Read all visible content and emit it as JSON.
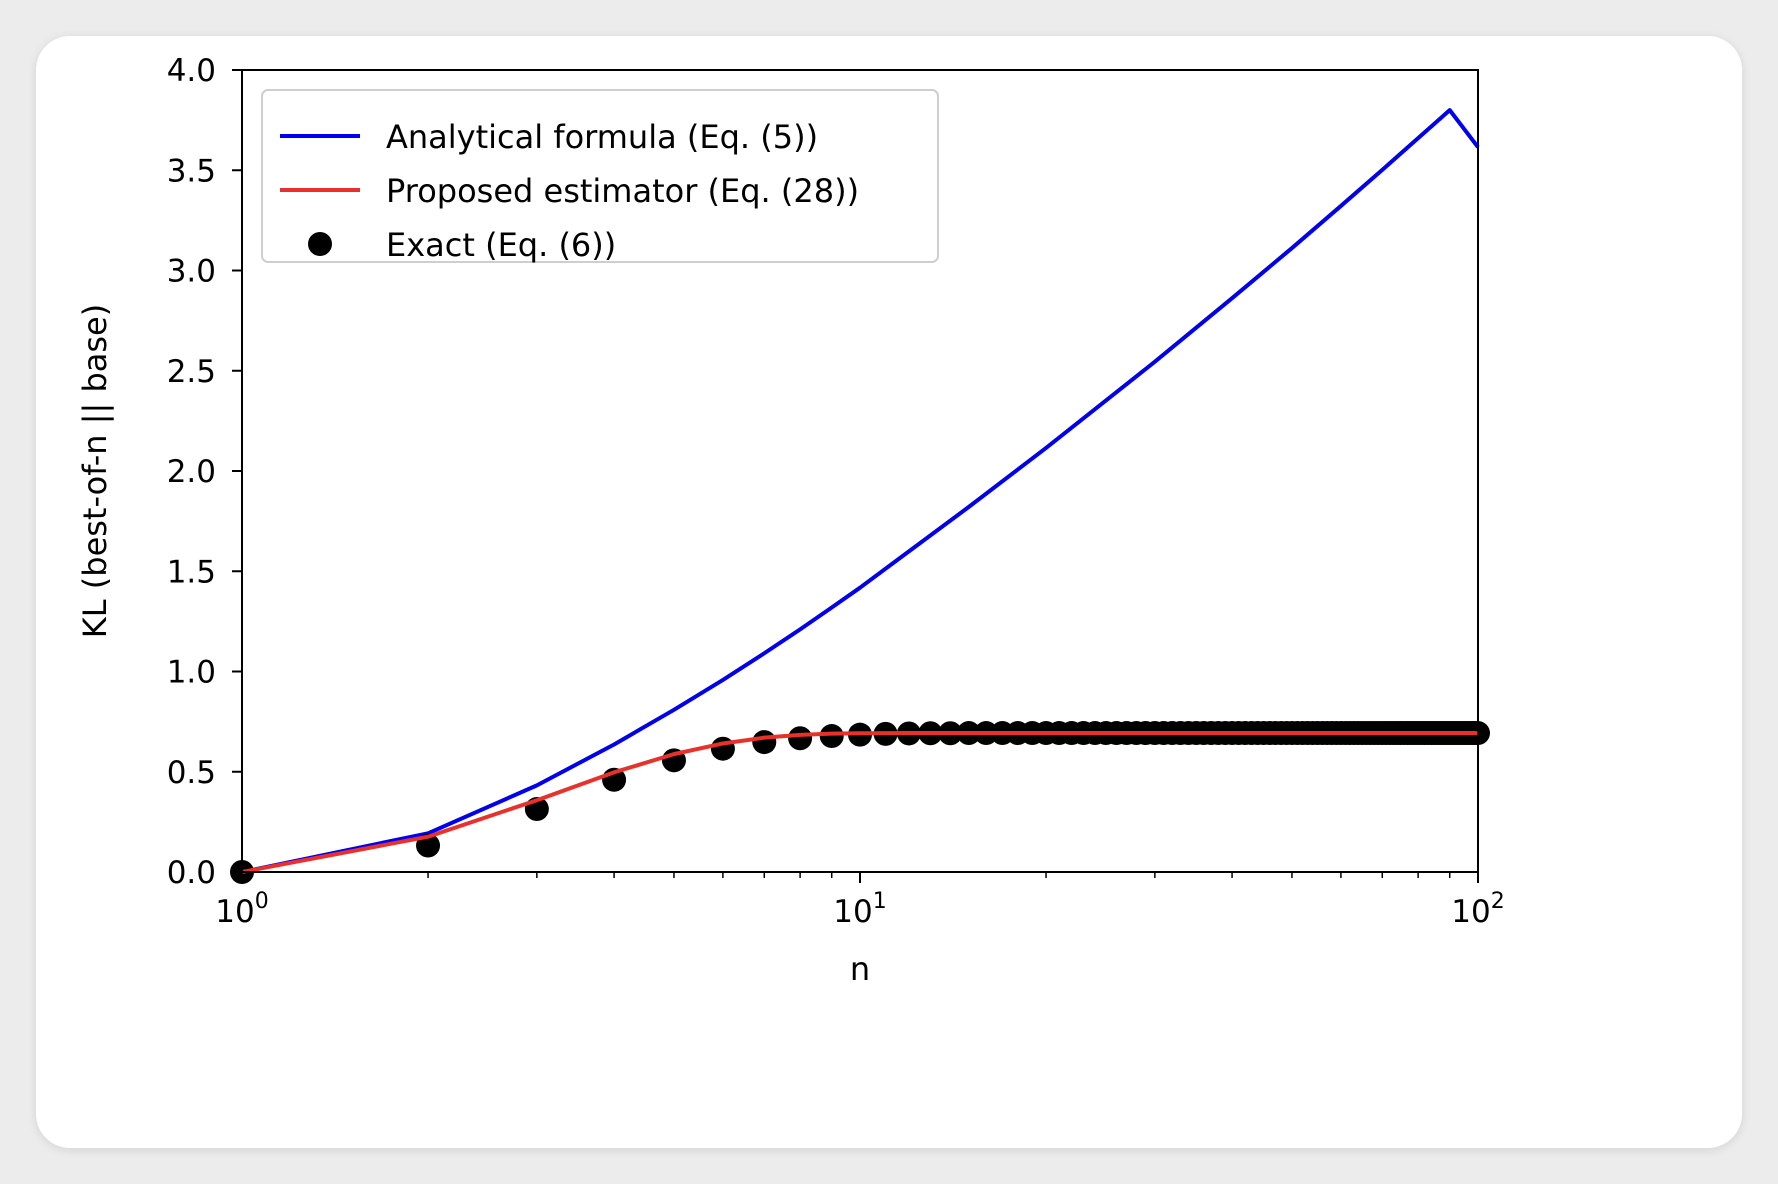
{
  "chart_data": {
    "type": "line",
    "xlabel": "n",
    "ylabel": "KL (best-of-n || base)",
    "xscale": "log",
    "xlim": [
      1,
      100
    ],
    "ylim": [
      0,
      4.0
    ],
    "yticks": [
      "0.0",
      "0.5",
      "1.0",
      "1.5",
      "2.0",
      "2.5",
      "3.0",
      "3.5",
      "4.0"
    ],
    "xticks": [
      {
        "base": "10",
        "exp": "0"
      },
      {
        "base": "10",
        "exp": "1"
      },
      {
        "base": "10",
        "exp": "2"
      }
    ],
    "legend_position": "top-left",
    "series": [
      {
        "name": "Analytical formula (Eq. (5))",
        "kind": "line",
        "color": "#0000ee",
        "x": [
          1,
          2,
          3,
          4,
          5,
          6,
          7,
          8,
          9,
          10,
          15,
          20,
          30,
          40,
          50,
          60,
          70,
          80,
          90,
          100
        ],
        "y": [
          0.0,
          0.193,
          0.432,
          0.636,
          0.809,
          0.958,
          1.091,
          1.21,
          1.319,
          1.418,
          1.821,
          2.115,
          2.545,
          2.862,
          3.112,
          3.322,
          3.502,
          3.66,
          3.8,
          3.615
        ]
      },
      {
        "name": "Proposed estimator (Eq. (28))",
        "kind": "line",
        "color": "#e8312a",
        "x": [
          1,
          2,
          3,
          4,
          5,
          6,
          7,
          8,
          9,
          10,
          12,
          15,
          20,
          30,
          50,
          100
        ],
        "y": [
          0.0,
          0.176,
          0.358,
          0.497,
          0.588,
          0.641,
          0.67,
          0.684,
          0.69,
          0.692,
          0.693,
          0.693,
          0.693,
          0.693,
          0.693,
          0.693
        ]
      },
      {
        "name": "Exact (Eq. (6))",
        "kind": "scatter",
        "color": "#000000",
        "x": [
          1,
          2,
          3,
          4,
          5,
          6,
          7,
          8,
          9,
          10,
          11,
          12,
          13,
          14,
          15,
          16,
          17,
          18,
          19,
          20,
          21,
          22,
          23,
          24,
          25,
          26,
          27,
          28,
          29,
          30,
          31,
          32,
          33,
          34,
          35,
          36,
          37,
          38,
          39,
          40,
          41,
          42,
          43,
          44,
          45,
          46,
          47,
          48,
          49,
          50,
          51,
          52,
          53,
          54,
          55,
          56,
          57,
          58,
          59,
          60,
          61,
          62,
          63,
          64,
          65,
          66,
          67,
          68,
          69,
          70,
          71,
          72,
          73,
          74,
          75,
          76,
          77,
          78,
          79,
          80,
          81,
          82,
          83,
          84,
          85,
          86,
          87,
          88,
          89,
          90,
          91,
          92,
          93,
          94,
          95,
          96,
          97,
          98,
          99,
          100
        ],
        "y": [
          0.0,
          0.132,
          0.314,
          0.46,
          0.557,
          0.615,
          0.648,
          0.667,
          0.678,
          0.685,
          0.689,
          0.691,
          0.692,
          0.692,
          0.693,
          0.693,
          0.693,
          0.693,
          0.693,
          0.693,
          0.693,
          0.693,
          0.693,
          0.693,
          0.693,
          0.693,
          0.693,
          0.693,
          0.693,
          0.693,
          0.693,
          0.693,
          0.693,
          0.693,
          0.693,
          0.693,
          0.693,
          0.693,
          0.693,
          0.693,
          0.693,
          0.693,
          0.693,
          0.693,
          0.693,
          0.693,
          0.693,
          0.693,
          0.693,
          0.693,
          0.693,
          0.693,
          0.693,
          0.693,
          0.693,
          0.693,
          0.693,
          0.693,
          0.693,
          0.693,
          0.693,
          0.693,
          0.693,
          0.693,
          0.693,
          0.693,
          0.693,
          0.693,
          0.693,
          0.693,
          0.693,
          0.693,
          0.693,
          0.693,
          0.693,
          0.693,
          0.693,
          0.693,
          0.693,
          0.693,
          0.693,
          0.693,
          0.693,
          0.693,
          0.693,
          0.693,
          0.693,
          0.693,
          0.693,
          0.693,
          0.693,
          0.693,
          0.693,
          0.693,
          0.693,
          0.693,
          0.693,
          0.693,
          0.693,
          0.693
        ]
      }
    ]
  }
}
